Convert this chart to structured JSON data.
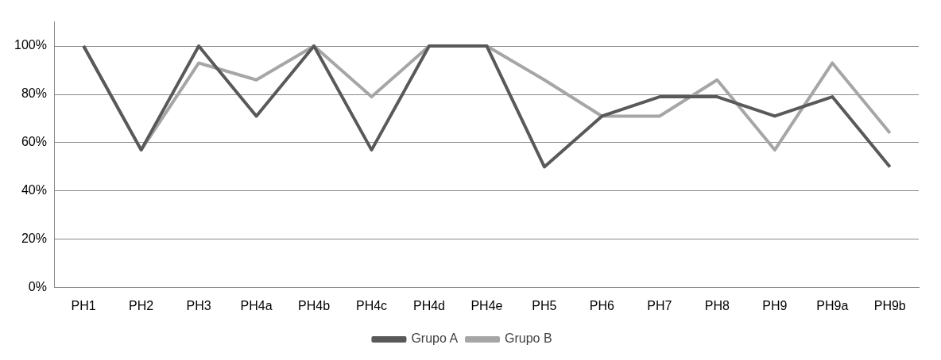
{
  "chart_data": {
    "type": "line",
    "categories": [
      "PH1",
      "PH2",
      "PH3",
      "PH4a",
      "PH4b",
      "PH4c",
      "PH4d",
      "PH4e",
      "PH5",
      "PH6",
      "PH7",
      "PH8",
      "PH9",
      "PH9a",
      "PH9b"
    ],
    "series": [
      {
        "name": "Grupo A",
        "color": "#595959",
        "values": [
          100,
          57,
          100,
          71,
          100,
          57,
          100,
          100,
          50,
          71,
          79,
          79,
          71,
          79,
          50
        ]
      },
      {
        "name": "Grupo B",
        "color": "#a6a6a6",
        "values": [
          100,
          57,
          93,
          86,
          100,
          79,
          100,
          100,
          86,
          71,
          71,
          86,
          57,
          93,
          64
        ]
      }
    ],
    "ylim": [
      0,
      110
    ],
    "yticks": [
      {
        "value": 0,
        "label": "0%"
      },
      {
        "value": 20,
        "label": "20%"
      },
      {
        "value": 40,
        "label": "40%"
      },
      {
        "value": 60,
        "label": "60%"
      },
      {
        "value": 80,
        "label": "80%"
      },
      {
        "value": 100,
        "label": "100%"
      }
    ],
    "grid": "y",
    "legend": "bottom",
    "marker": "none",
    "line_style": "solid"
  }
}
